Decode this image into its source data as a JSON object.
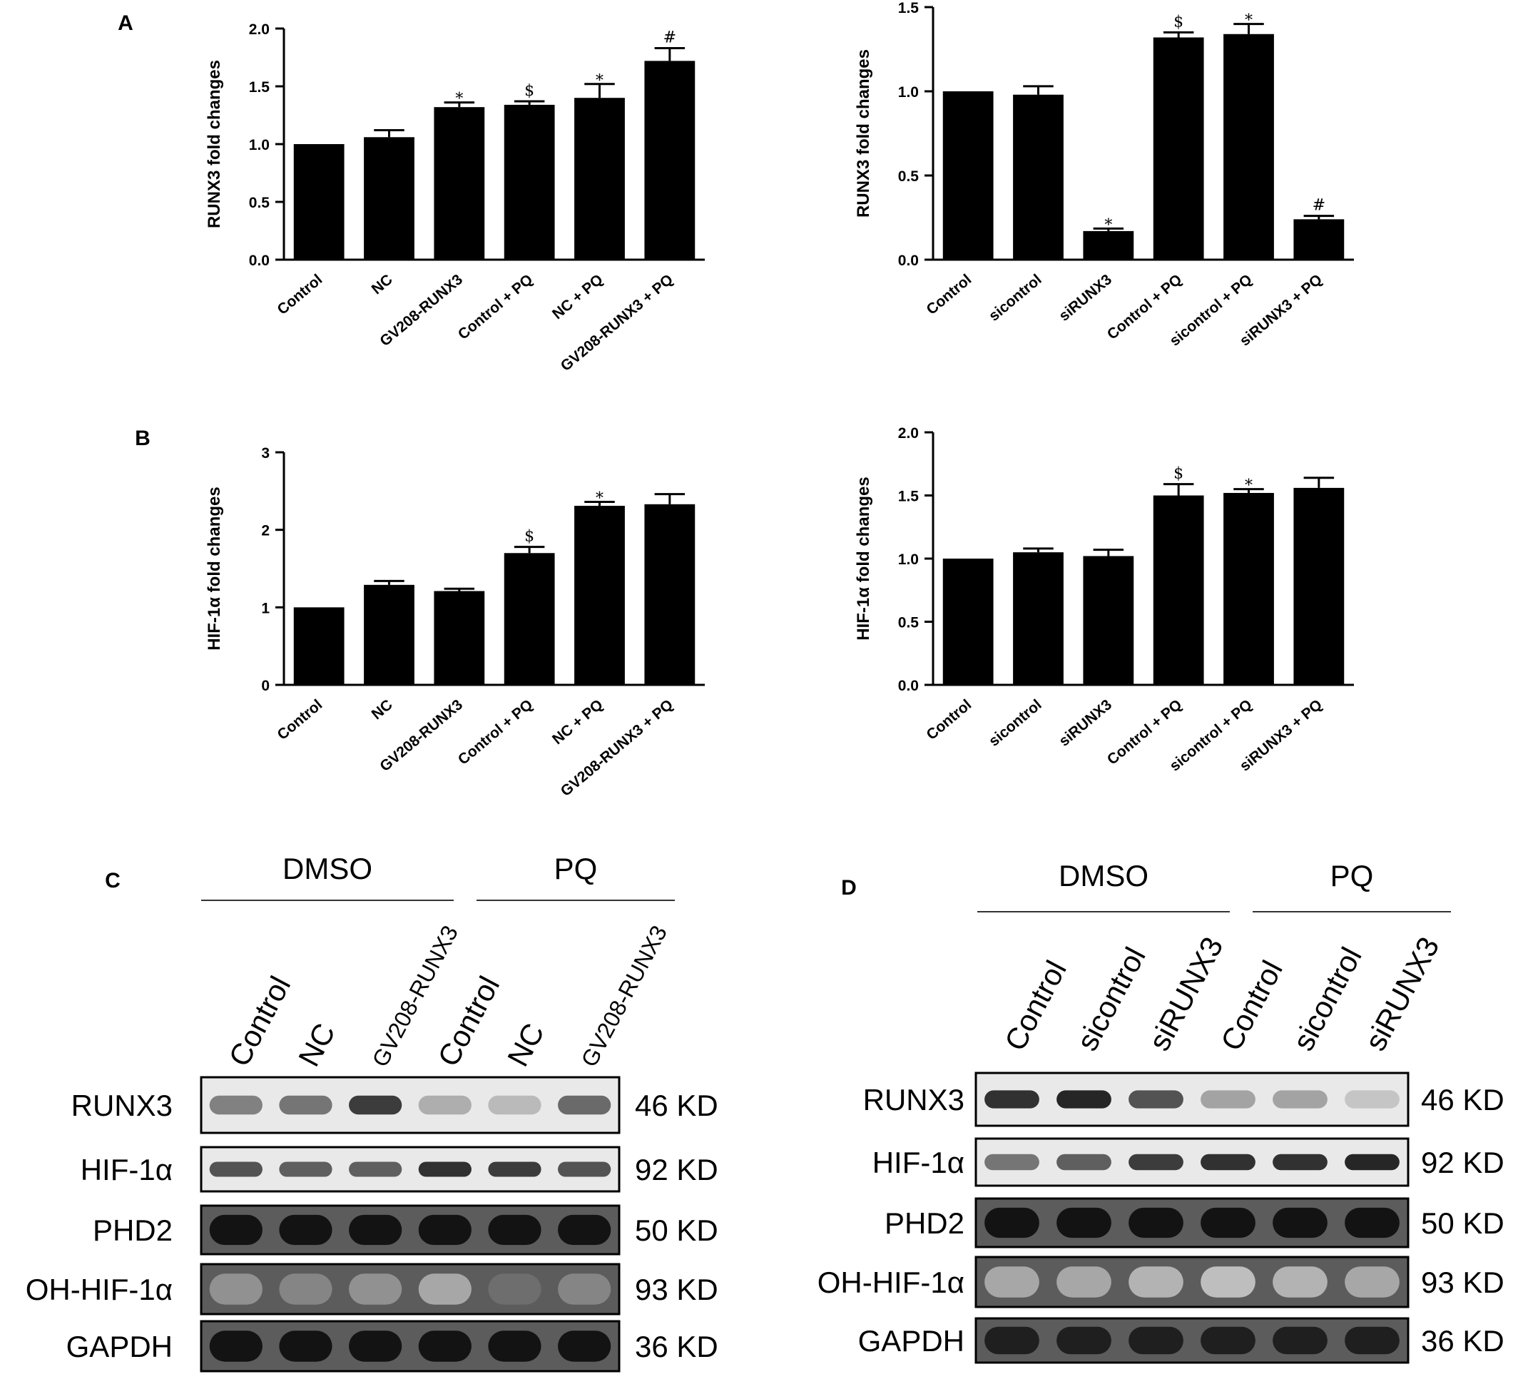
{
  "chart_data": [
    {
      "type": "bar",
      "panel": "A",
      "ylabel": "RUNX3 fold changes",
      "ylim": [
        0,
        2.0
      ],
      "yticks": [
        0.0,
        0.5,
        1.0,
        1.5,
        2.0
      ],
      "ytick_labels": [
        "0.0",
        "0.5",
        "1.0",
        "1.5",
        "2.0"
      ],
      "categories": [
        "Control",
        "NC",
        "GV208-RUNX3",
        "Control + PQ",
        "NC + PQ",
        "GV208-RUNX3 + PQ"
      ],
      "values": [
        1.0,
        1.06,
        1.32,
        1.34,
        1.4,
        1.72
      ],
      "errors": [
        0.0,
        0.06,
        0.04,
        0.03,
        0.12,
        0.11
      ],
      "significance": [
        "",
        "",
        "*",
        "$",
        "*",
        "#"
      ]
    },
    {
      "type": "bar",
      "panel": "",
      "ylabel": "RUNX3 fold changes",
      "ylim": [
        0,
        1.5
      ],
      "yticks": [
        0.0,
        0.5,
        1.0,
        1.5
      ],
      "ytick_labels": [
        "0.0",
        "0.5",
        "1.0",
        "1.5"
      ],
      "categories": [
        "Control",
        "sicontrol",
        "siRUNX3",
        "Control + PQ",
        "sicontrol + PQ",
        "siRUNX3 + PQ"
      ],
      "values": [
        1.0,
        0.98,
        0.17,
        1.32,
        1.34,
        0.24
      ],
      "errors": [
        0.0,
        0.05,
        0.015,
        0.03,
        0.06,
        0.02
      ],
      "significance": [
        "",
        "",
        "*",
        "$",
        "*",
        "#"
      ]
    },
    {
      "type": "bar",
      "panel": "B",
      "ylabel": "HIF-1α fold changes",
      "ylim": [
        0,
        3
      ],
      "yticks": [
        0,
        1,
        2,
        3
      ],
      "ytick_labels": [
        "0",
        "1",
        "2",
        "3"
      ],
      "categories": [
        "Control",
        "NC",
        "GV208-RUNX3",
        "Control + PQ",
        "NC + PQ",
        "GV208-RUNX3 + PQ"
      ],
      "values": [
        1.0,
        1.29,
        1.21,
        1.7,
        2.31,
        2.33
      ],
      "errors": [
        0.0,
        0.05,
        0.03,
        0.08,
        0.05,
        0.13
      ],
      "significance": [
        "",
        "",
        "",
        "$",
        "*",
        ""
      ]
    },
    {
      "type": "bar",
      "panel": "",
      "ylabel": "HIF-1α fold changes",
      "ylim": [
        0,
        2.0
      ],
      "yticks": [
        0.0,
        0.5,
        1.0,
        1.5,
        2.0
      ],
      "ytick_labels": [
        "0.0",
        "0.5",
        "1.0",
        "1.5",
        "2.0"
      ],
      "categories": [
        "Control",
        "sicontrol",
        "siRUNX3",
        "Control + PQ",
        "sicontrol + PQ",
        "siRUNX3 + PQ"
      ],
      "values": [
        1.0,
        1.05,
        1.02,
        1.5,
        1.52,
        1.56
      ],
      "errors": [
        0.0,
        0.03,
        0.05,
        0.09,
        0.03,
        0.08
      ],
      "significance": [
        "",
        "",
        "",
        "$",
        "*",
        ""
      ]
    }
  ],
  "blots": [
    {
      "panel": "C",
      "groups": [
        "DMSO",
        "PQ"
      ],
      "lanes": [
        "Control",
        "NC",
        "GV208-RUNX3",
        "Control",
        "NC",
        "GV208-RUNX3"
      ],
      "proteins": [
        "RUNX3",
        "HIF-1α",
        "PHD2",
        "OH-HIF-1α",
        "GAPDH"
      ],
      "sizes": [
        "46 KD",
        "92 KD",
        "50 KD",
        "93 KD",
        "36 KD"
      ],
      "intensities": [
        [
          0.55,
          0.6,
          0.85,
          0.35,
          0.3,
          0.65
        ],
        [
          0.75,
          0.7,
          0.7,
          0.9,
          0.85,
          0.75
        ],
        [
          1,
          1,
          1,
          1,
          1,
          1
        ],
        [
          0.45,
          0.5,
          0.45,
          0.35,
          0.6,
          0.5
        ],
        [
          1,
          1,
          1,
          1,
          1,
          1
        ]
      ]
    },
    {
      "panel": "D",
      "groups": [
        "DMSO",
        "PQ"
      ],
      "lanes": [
        "Control",
        "sicontrol",
        "siRUNX3",
        "Control",
        "sicontrol",
        "siRUNX3"
      ],
      "proteins": [
        "RUNX3",
        "HIF-1α",
        "PHD2",
        "OH-HIF-1α",
        "GAPDH"
      ],
      "sizes": [
        "46 KD",
        "92 KD",
        "50 KD",
        "93 KD",
        "36 KD"
      ],
      "intensities": [
        [
          0.9,
          0.95,
          0.75,
          0.4,
          0.4,
          0.25
        ],
        [
          0.6,
          0.7,
          0.85,
          0.9,
          0.9,
          0.95
        ],
        [
          1,
          1,
          1,
          1,
          1,
          1
        ],
        [
          0.35,
          0.35,
          0.3,
          0.25,
          0.3,
          0.35
        ],
        [
          0.95,
          0.95,
          0.95,
          0.95,
          0.95,
          0.95
        ]
      ]
    }
  ]
}
